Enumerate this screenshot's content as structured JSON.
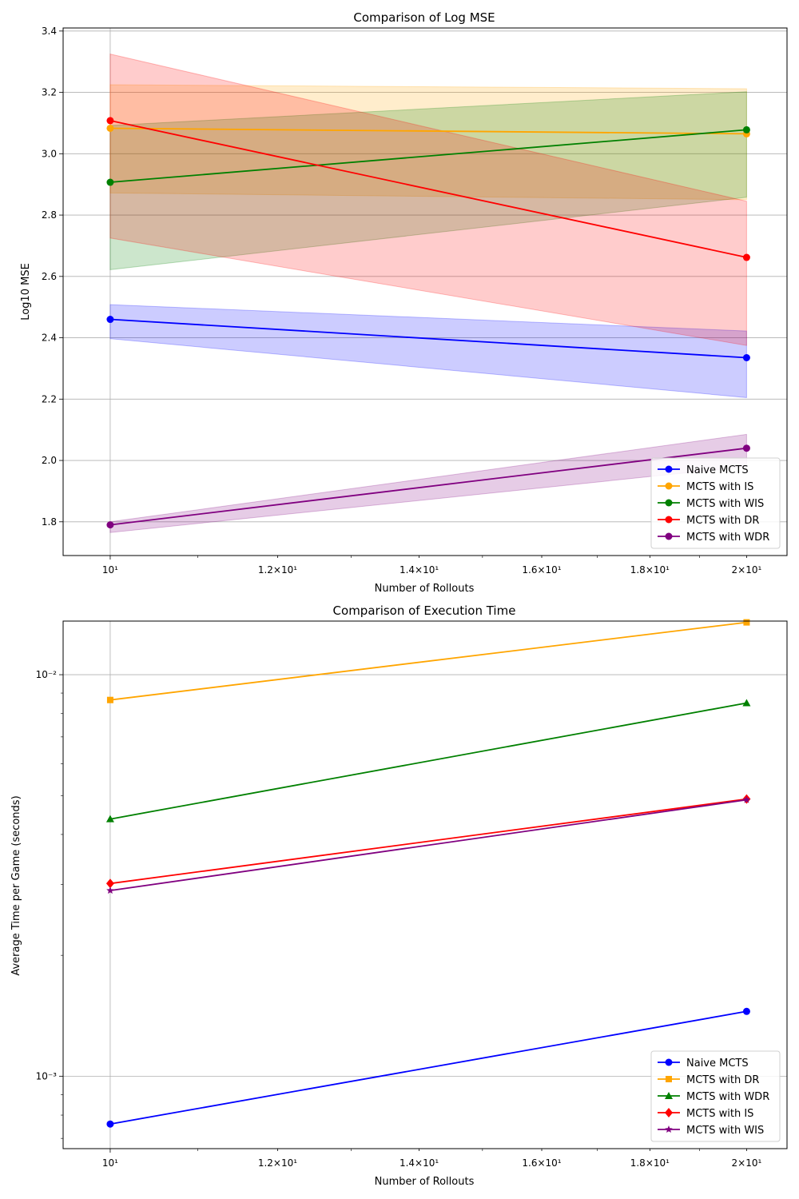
{
  "chart_data": [
    {
      "type": "line",
      "title": "Comparison of Log MSE",
      "xlabel": "Number of Rollouts",
      "ylabel": "Log10 MSE",
      "xscale": "log",
      "x": [
        10,
        20
      ],
      "xlim": [
        9.5,
        20.9
      ],
      "ylim": [
        1.69,
        3.41
      ],
      "yticks": [
        1.8,
        2.0,
        2.2,
        2.4,
        2.6,
        2.8,
        3.0,
        3.2,
        3.4
      ],
      "xticks": [
        10,
        12,
        14,
        16,
        18,
        20
      ],
      "grid": true,
      "legend_position": "lower right",
      "series": [
        {
          "name": "Naive MCTS",
          "color": "#0000ff",
          "marker": "circle",
          "values": [
            2.46,
            2.335
          ],
          "lower": [
            2.397,
            2.205
          ],
          "upper": [
            2.508,
            2.422
          ]
        },
        {
          "name": "MCTS with IS",
          "color": "#ffa500",
          "marker": "circle",
          "values": [
            3.083,
            3.065
          ],
          "lower": [
            2.872,
            2.85
          ],
          "upper": [
            3.225,
            3.212
          ]
        },
        {
          "name": "MCTS with WIS",
          "color": "#008000",
          "marker": "circle",
          "values": [
            2.907,
            3.078
          ],
          "lower": [
            2.622,
            2.858
          ],
          "upper": [
            3.092,
            3.202
          ]
        },
        {
          "name": "MCTS with DR",
          "color": "#ff0000",
          "marker": "circle",
          "values": [
            3.108,
            2.662
          ],
          "lower": [
            2.725,
            2.375
          ],
          "upper": [
            3.325,
            2.845
          ]
        },
        {
          "name": "MCTS with WDR",
          "color": "#800080",
          "marker": "circle",
          "values": [
            1.79,
            2.04
          ],
          "lower": [
            1.765,
            1.98
          ],
          "upper": [
            1.8,
            2.085
          ]
        }
      ]
    },
    {
      "type": "line",
      "title": "Comparison of Execution Time",
      "xlabel": "Number of Rollouts",
      "ylabel": "Average Time per Game (seconds)",
      "xscale": "log",
      "yscale": "log",
      "x": [
        10,
        20
      ],
      "xlim": [
        9.5,
        20.9
      ],
      "ylim": [
        0.00066,
        0.0136
      ],
      "xticks": [
        10,
        12,
        14,
        16,
        18,
        20
      ],
      "grid": true,
      "legend_position": "lower right",
      "series": [
        {
          "name": "Naive MCTS",
          "color": "#0000ff",
          "marker": "circle",
          "values": [
            0.00076,
            0.00145
          ]
        },
        {
          "name": "MCTS with DR",
          "color": "#ffa500",
          "marker": "square",
          "values": [
            0.00865,
            0.0135
          ]
        },
        {
          "name": "MCTS with WDR",
          "color": "#008000",
          "marker": "triangle",
          "values": [
            0.00437,
            0.0085
          ]
        },
        {
          "name": "MCTS with IS",
          "color": "#ff0000",
          "marker": "diamond",
          "values": [
            0.00302,
            0.0049
          ]
        },
        {
          "name": "MCTS with WIS",
          "color": "#800080",
          "marker": "star",
          "values": [
            0.0029,
            0.00488
          ]
        }
      ]
    }
  ]
}
